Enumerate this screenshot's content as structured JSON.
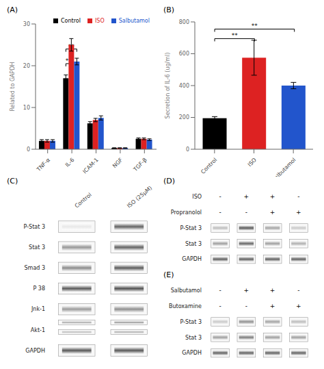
{
  "chart_data": [
    {
      "type": "bar",
      "title": "(A)",
      "categories": [
        "TNF-α",
        "IL-6",
        "ICAM-1",
        "NGF",
        "TGF-β"
      ],
      "series": [
        {
          "name": "Control",
          "color": "#000000",
          "values": [
            2.0,
            17.0,
            6.2,
            0.3,
            2.5
          ],
          "errors": [
            0.3,
            0.8,
            0.4,
            0.05,
            0.2
          ]
        },
        {
          "name": "ISO",
          "color": "#dd2222",
          "values": [
            2.0,
            25.0,
            7.0,
            0.3,
            2.5
          ],
          "errors": [
            0.3,
            1.5,
            0.4,
            0.05,
            0.2
          ]
        },
        {
          "name": "Salbutamol",
          "color": "#2255cc",
          "values": [
            2.0,
            21.0,
            7.5,
            0.3,
            2.3
          ],
          "errors": [
            0.3,
            0.8,
            0.5,
            0.05,
            0.2
          ]
        }
      ],
      "ylabel": "Related to GAPDH",
      "ylim": [
        0,
        30
      ],
      "yticks": [
        0,
        10,
        20,
        30
      ],
      "legend": "upper right",
      "annotations": [
        {
          "text": "**",
          "category": "IL-6",
          "from": "Control",
          "to": "ISO",
          "y": 20.5
        },
        {
          "text": "**",
          "category": "IL-6",
          "from": "Control",
          "to": "Salbutamol",
          "y": 24.0
        }
      ]
    },
    {
      "type": "bar",
      "title": "(B)",
      "categories": [
        "Control",
        "ISO",
        "Salbutamol"
      ],
      "values": [
        195,
        575,
        400
      ],
      "errors": [
        10,
        110,
        20
      ],
      "colors": [
        "#000000",
        "#dd2222",
        "#2255cc"
      ],
      "ylabel": "Secretion of IL-6 (ug/ml)",
      "ylim": [
        0,
        800
      ],
      "yticks": [
        0,
        200,
        400,
        600,
        800
      ],
      "annotations": [
        {
          "text": "**",
          "from": "Control",
          "to": "ISO",
          "y": 695
        },
        {
          "text": "**",
          "from": "Control",
          "to": "Salbutamol",
          "y": 755
        }
      ]
    },
    {
      "type": "heatmap",
      "title": "(C)",
      "categories": [
        "Control",
        "ISO (25μM)"
      ],
      "rows": [
        "P-Stat 3",
        "Stat 3",
        "Smad 3",
        "P 38",
        "Jnk-1",
        "Akt-1",
        "GAPDH"
      ],
      "cells": [
        [
          0.12,
          0.82
        ],
        [
          0.55,
          0.82
        ],
        [
          0.6,
          0.85
        ],
        [
          0.85,
          0.9
        ],
        [
          0.52,
          0.58
        ],
        [
          [
            0.4675,
            0.3575
          ],
          [
            0.5525,
            0.4225
          ]
        ],
        [
          0.88,
          0.88
        ]
      ]
    },
    {
      "type": "heatmap",
      "title": "(D)",
      "treatments": [
        {
          "name": "ISO",
          "labels": [
            "-",
            "+",
            "+",
            "-"
          ]
        },
        {
          "name": "Propranolol",
          "labels": [
            "-",
            "-",
            "+",
            "+"
          ]
        }
      ],
      "rows": [
        "P-Stat 3",
        "Stat 3",
        "GAPDH"
      ],
      "cells": [
        [
          0.35,
          0.88,
          0.48,
          0.28
        ],
        [
          0.5,
          0.8,
          0.5,
          0.42
        ],
        [
          0.82,
          0.82,
          0.82,
          0.82
        ]
      ],
      "tick_labels": "y"
    },
    {
      "type": "heatmap",
      "title": "(E)",
      "treatments": [
        {
          "name": "Salbutamol",
          "labels": [
            "-",
            "+",
            "+",
            "-"
          ]
        },
        {
          "name": "Butoxamine",
          "labels": [
            "-",
            "-",
            "+",
            "+"
          ]
        }
      ],
      "rows": [
        "P-Stat 3",
        "Stat 3",
        "GAPDH"
      ],
      "cells": [
        [
          0.28,
          0.58,
          0.48,
          0.35
        ],
        [
          0.5,
          0.68,
          0.5,
          0.5
        ],
        [
          0.8,
          0.8,
          0.8,
          0.8
        ]
      ],
      "tick_labels": "y"
    }
  ]
}
